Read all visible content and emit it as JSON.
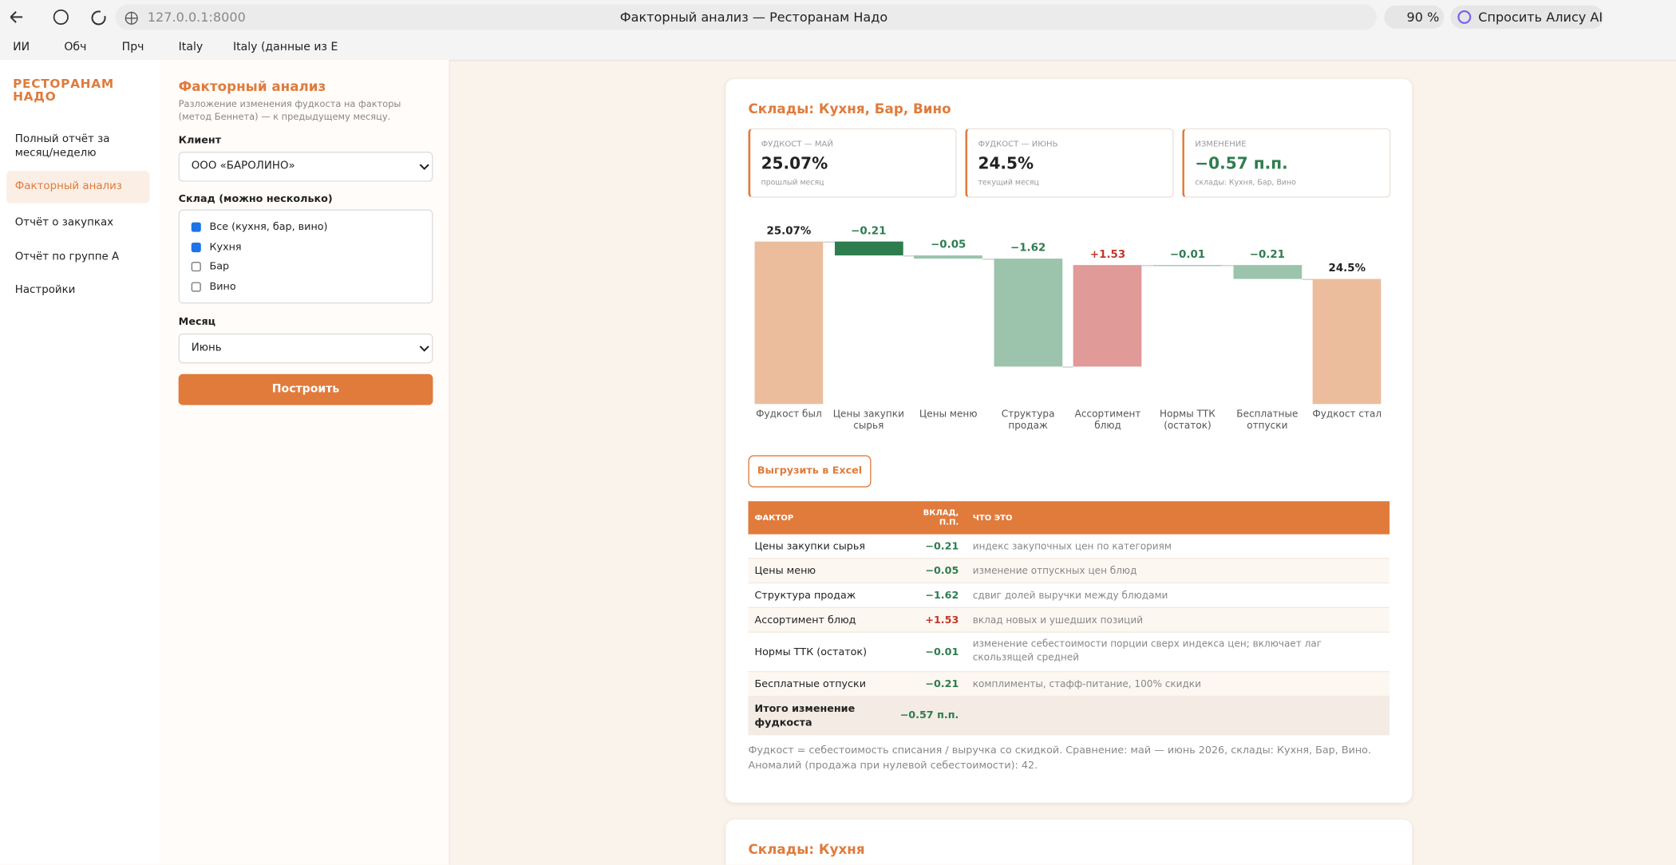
{
  "browser": {
    "url": "127.0.0.1:8000",
    "tab_title": "Факторный анализ — Ресторанам Надо",
    "zoom": "90 %",
    "alice": "Спросить Алису AI",
    "bookmarks": [
      "ИИ",
      "Обч",
      "Прч",
      "Italy",
      "Italy (данные из Е"
    ]
  },
  "sidebar": {
    "brand": "РЕСТОРАНАМ НАДО",
    "nav": [
      "Полный отчёт за месяц/неделю",
      "Факторный анализ",
      "Отчёт о закупках",
      "Отчёт по группе А",
      "Настройки"
    ],
    "active": 1
  },
  "form": {
    "title": "Факторный анализ",
    "subtitle": "Разложение изменения фудкоста на факторы (метод Беннета) — к предыдущему месяцу.",
    "client_label": "Клиент",
    "client": "ООО «БАРОЛИНО»",
    "stock_label": "Склад (можно несколько)",
    "stocks": [
      {
        "label": "Все (кухня, бар, вино)",
        "checked": true
      },
      {
        "label": "Кухня",
        "checked": true
      },
      {
        "label": "Бар",
        "checked": false
      },
      {
        "label": "Вино",
        "checked": false
      }
    ],
    "month_label": "Месяц",
    "month": "Июнь",
    "button": "Построить"
  },
  "card": {
    "title": "Склады: Кухня, Бар, Вино",
    "kpis": [
      {
        "label": "ФУДКОСТ — МАЙ",
        "value": "25.07%",
        "note": "прошлый месяц",
        "color": "#222"
      },
      {
        "label": "ФУДКОСТ — ИЮНЬ",
        "value": "24.5%",
        "note": "текущий месяц",
        "color": "#222"
      },
      {
        "label": "ИЗМЕНЕНИЕ",
        "value": "−0.57 п.п.",
        "note": "склады: Кухня, Бар, Вино",
        "color": "#2e7d4f"
      }
    ],
    "waterfall": {
      "type": "waterfall",
      "categories": [
        "Фудкост был",
        "Цены закупки сырья",
        "Цены меню",
        "Структура продаж",
        "Ассортимент блюд",
        "Нормы ТТК (остаток)",
        "Бесплатные отпуски",
        "Фудкост стал"
      ],
      "values": [
        25.07,
        -0.21,
        -0.05,
        -1.62,
        1.53,
        -0.01,
        -0.21,
        24.5
      ],
      "value_labels": [
        "25.07%",
        "−0.21",
        "−0.05",
        "−1.62",
        "+1.53",
        "−0.01",
        "−0.21",
        "24.5%"
      ],
      "totals": [
        true,
        false,
        false,
        false,
        false,
        false,
        false,
        true
      ],
      "colors": [
        "#ebbd9c",
        "#2e7d4f",
        "#9cc3ab",
        "#9cc3ab",
        "#e09a98",
        "#9cc3ab",
        "#9cc3ab",
        "#ebbd9c"
      ]
    },
    "export": "Выгрузить в Excel",
    "table": {
      "header": [
        "ФАКТОР",
        "ВКЛАД, П.П.",
        "ЧТО ЭТО"
      ],
      "rows": [
        [
          "Цены закупки сырья",
          "−0.21",
          "индекс закупочных цен по категориям"
        ],
        [
          "Цены меню",
          "−0.05",
          "изменение отпускных цен блюд"
        ],
        [
          "Структура продаж",
          "−1.62",
          "сдвиг долей выручки между блюдами"
        ],
        [
          "Ассортимент блюд",
          "+1.53",
          "вклад новых и ушедших позиций"
        ],
        [
          "Нормы ТТК (остаток)",
          "−0.01",
          "изменение себестоимости порции сверх индекса цен; включает лаг скользящей средней"
        ],
        [
          "Бесплатные отпуски",
          "−0.21",
          "комплименты, стафф-питание, 100% скидки"
        ]
      ],
      "total": [
        "Итого изменение фудкоста",
        "−0.57 п.п."
      ]
    },
    "footnote": "Фудкост = себестоимость списания / выручка со скидкой. Сравнение: май — июнь 2026, склады: Кухня, Бар, Вино. Аномалий (продажа при нулевой себестоимости): 42."
  },
  "card2_title": "Склады: Кухня"
}
